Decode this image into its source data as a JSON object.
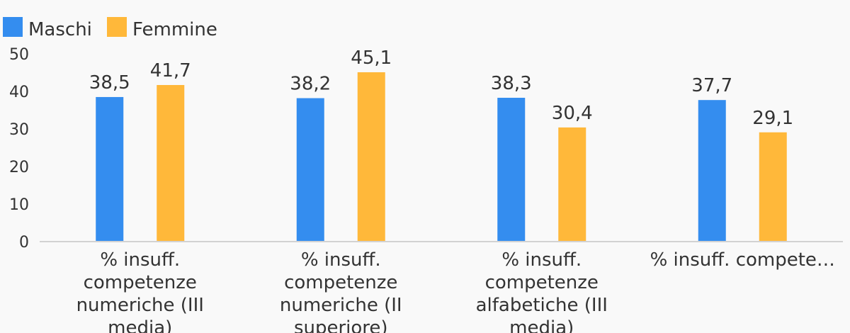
{
  "chart_data": {
    "type": "bar",
    "categories": [
      "% insuff. competenze numeriche (III media)",
      "% insuff. competenze numeriche (II superiore)",
      "% insuff. competenze alfabetiche (III media)",
      "% insuff. compete…"
    ],
    "category_lines": [
      [
        "% insuff.",
        "competenze",
        "numeriche (III",
        "media)"
      ],
      [
        "% insuff.",
        "competenze",
        "numeriche (II",
        "superiore)"
      ],
      [
        "% insuff.",
        "competenze",
        "alfabetiche (III",
        "media)"
      ],
      [
        "% insuff. compete…"
      ]
    ],
    "series": [
      {
        "name": "Maschi",
        "color": "#348def",
        "values": [
          38.5,
          38.2,
          38.3,
          37.7
        ],
        "labels": [
          "38,5",
          "38,2",
          "38,3",
          "37,7"
        ]
      },
      {
        "name": "Femmine",
        "color": "#ffb83a",
        "values": [
          41.7,
          45.1,
          30.4,
          29.1
        ],
        "labels": [
          "41,7",
          "45,1",
          "30,4",
          "29,1"
        ]
      }
    ],
    "y_ticks": [
      "0",
      "10",
      "20",
      "30",
      "40",
      "50"
    ],
    "ylim": [
      0,
      50
    ],
    "legend_position": "top-left",
    "grid": false
  }
}
